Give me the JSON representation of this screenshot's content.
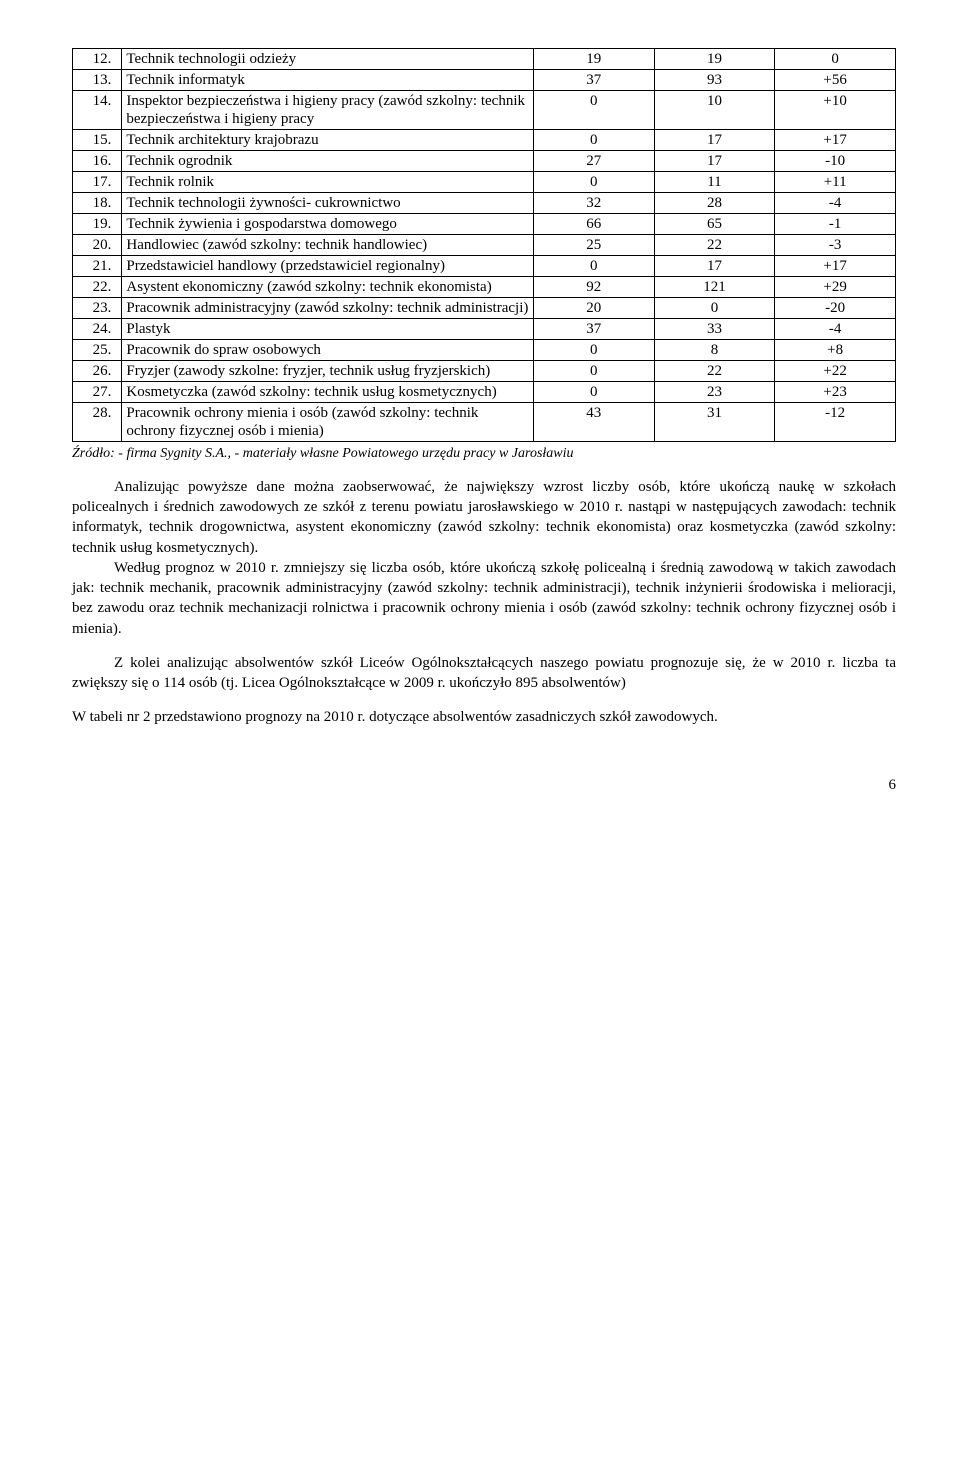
{
  "table": {
    "rows": [
      {
        "n": "12.",
        "name": "Technik technologii odzieży",
        "a": "19",
        "b": "19",
        "c": "0"
      },
      {
        "n": "13.",
        "name": "Technik informatyk",
        "a": "37",
        "b": "93",
        "c": "+56"
      },
      {
        "n": "14.",
        "name": "Inspektor bezpieczeństwa i higieny pracy (zawód szkolny: technik bezpieczeństwa i higieny pracy",
        "a": "0",
        "b": "10",
        "c": "+10"
      },
      {
        "n": "15.",
        "name": "Technik architektury krajobrazu",
        "a": "0",
        "b": "17",
        "c": "+17"
      },
      {
        "n": "16.",
        "name": "Technik ogrodnik",
        "a": "27",
        "b": "17",
        "c": "-10"
      },
      {
        "n": "17.",
        "name": "Technik rolnik",
        "a": "0",
        "b": "11",
        "c": "+11"
      },
      {
        "n": "18.",
        "name": "Technik technologii żywności- cukrownictwo",
        "a": "32",
        "b": "28",
        "c": "-4"
      },
      {
        "n": "19.",
        "name": "Technik żywienia i gospodarstwa domowego",
        "a": "66",
        "b": "65",
        "c": "-1"
      },
      {
        "n": "20.",
        "name": "Handlowiec (zawód szkolny: technik handlowiec)",
        "a": "25",
        "b": "22",
        "c": "-3"
      },
      {
        "n": "21.",
        "name": "Przedstawiciel handlowy (przedstawiciel regionalny)",
        "a": "0",
        "b": "17",
        "c": "+17"
      },
      {
        "n": "22.",
        "name": "Asystent ekonomiczny (zawód szkolny: technik ekonomista)",
        "a": "92",
        "b": "121",
        "c": "+29"
      },
      {
        "n": "23.",
        "name": "Pracownik administracyjny (zawód szkolny: technik administracji)",
        "a": "20",
        "b": "0",
        "c": "-20"
      },
      {
        "n": "24.",
        "name": "Plastyk",
        "a": "37",
        "b": "33",
        "c": "-4"
      },
      {
        "n": "25.",
        "name": "Pracownik do spraw osobowych",
        "a": "0",
        "b": "8",
        "c": "+8"
      },
      {
        "n": "26.",
        "name": "Fryzjer (zawody szkolne: fryzjer, technik usług fryzjerskich)",
        "a": "0",
        "b": "22",
        "c": "+22"
      },
      {
        "n": "27.",
        "name": "Kosmetyczka (zawód szkolny: technik usług kosmetycznych)",
        "a": "0",
        "b": "23",
        "c": "+23"
      },
      {
        "n": "28.",
        "name": "Pracownik ochrony mienia i osób (zawód szkolny: technik ochrony fizycznej osób i mienia)",
        "a": "43",
        "b": "31",
        "c": "-12"
      }
    ]
  },
  "source": "Źródło: - firma Sygnity S.A., - materiały własne Powiatowego urzędu pracy w Jarosławiu",
  "para1": "Analizując powyższe dane można zaobserwować, że największy wzrost liczby osób, które ukończą naukę w szkołach policealnych i średnich zawodowych ze szkół z terenu powiatu jarosławskiego w 2010 r. nastąpi w następujących zawodach: technik informatyk, technik drogownictwa, asystent ekonomiczny (zawód szkolny: technik ekonomista) oraz kosmetyczka (zawód szkolny: technik usług kosmetycznych).",
  "para2": "Według prognoz w 2010 r. zmniejszy się liczba osób, które ukończą szkołę policealną i średnią zawodową w takich zawodach jak: technik mechanik, pracownik administracyjny (zawód szkolny: technik administracji), technik inżynierii środowiska i melioracji, bez zawodu oraz technik mechanizacji rolnictwa i pracownik ochrony mienia i osób (zawód szkolny: technik ochrony fizycznej osób i mienia).",
  "para3": "Z kolei analizując absolwentów szkół Liceów Ogólnokształcących naszego powiatu prognozuje się, że w 2010 r. liczba ta zwiększy się o 114 osób (tj. Licea Ogólnokształcące w 2009 r. ukończyło 895 absolwentów)",
  "para4": "W tabeli nr 2 przedstawiono prognozy na 2010 r. dotyczące absolwentów zasadniczych szkół zawodowych.",
  "page_number": "6"
}
